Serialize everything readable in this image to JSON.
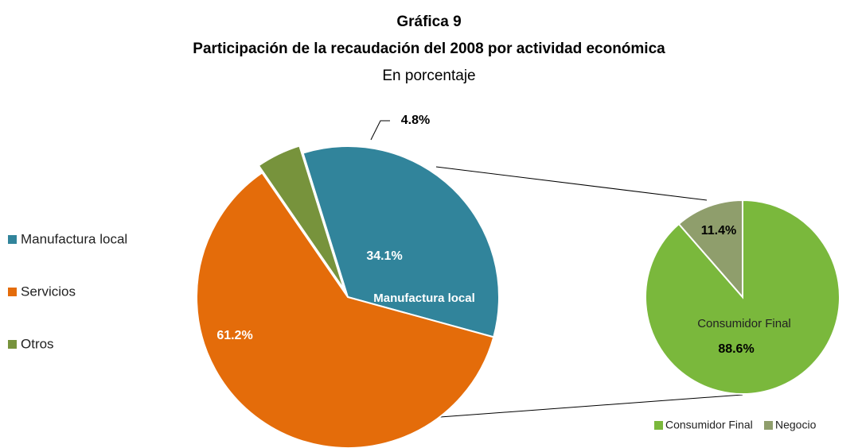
{
  "chart_data": [
    {
      "type": "pie",
      "title": [
        "Gráfica 9",
        "Participación de la recaudación del 2008 por actividad económica"
      ],
      "subtitle": "En porcentaje",
      "categories": [
        "Manufactura local",
        "Servicios",
        "Otros"
      ],
      "values": [
        34.1,
        61.2,
        4.8
      ],
      "value_labels": [
        "34.1%",
        "61.2%",
        "4.8%"
      ],
      "colors": [
        "#31849b",
        "#e46c0a",
        "#77933c"
      ],
      "legend": "left"
    },
    {
      "type": "pie",
      "categories": [
        "Consumidor Final",
        "Negocio"
      ],
      "values": [
        88.6,
        11.4
      ],
      "value_labels": [
        "88.6%",
        "11.4%"
      ],
      "colors": [
        "#7ab83c",
        "#8f9e6c"
      ],
      "legend": "bottom-right"
    }
  ]
}
